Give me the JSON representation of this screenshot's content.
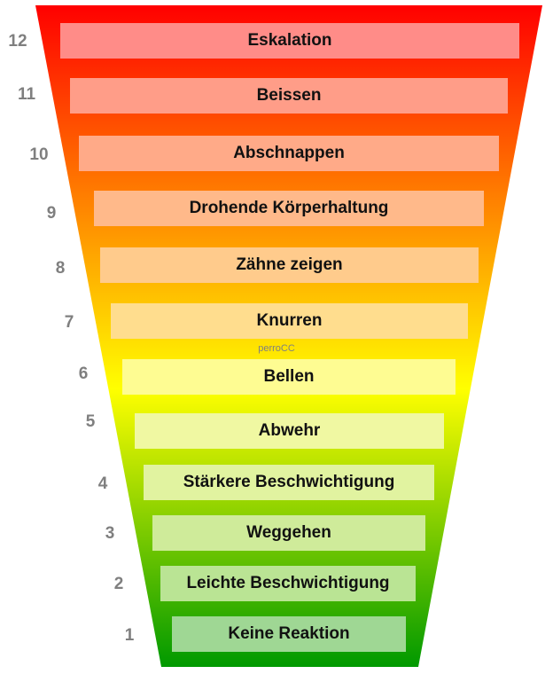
{
  "title": "",
  "watermark": "perroCC",
  "colors": {
    "funnel_top": "#ff0000",
    "funnel_orange": "#ff8c00",
    "funnel_yellow": "#ffff00",
    "funnel_bottom": "#009900",
    "label_color": "#7f7f7f"
  },
  "levels": [
    {
      "level": "12",
      "label": "Eskalation",
      "fill": "#ff8c88"
    },
    {
      "level": "11",
      "label": "Beissen",
      "fill": "#ff9d88"
    },
    {
      "level": "10",
      "label": "Abschnappen",
      "fill": "#ffaa88"
    },
    {
      "level": "9",
      "label": "Drohende Körperhaltung",
      "fill": "#ffb98a"
    },
    {
      "level": "8",
      "label": "Zähne zeigen",
      "fill": "#ffcb8c"
    },
    {
      "level": "7",
      "label": "Knurren",
      "fill": "#ffdd8e"
    },
    {
      "level": "6",
      "label": "Bellen",
      "fill": "#fefc92"
    },
    {
      "level": "5",
      "label": "Abwehr",
      "fill": "#f0f8a2"
    },
    {
      "level": "4",
      "label": "Stärkere Beschwichtigung",
      "fill": "#e1f3a0"
    },
    {
      "level": "3",
      "label": "Weggehen",
      "fill": "#cfeb9a"
    },
    {
      "level": "2",
      "label": "Leichte Beschwichtigung",
      "fill": "#bae494"
    },
    {
      "level": "1",
      "label": "Keine Reaktion",
      "fill": "#9fd794"
    }
  ]
}
